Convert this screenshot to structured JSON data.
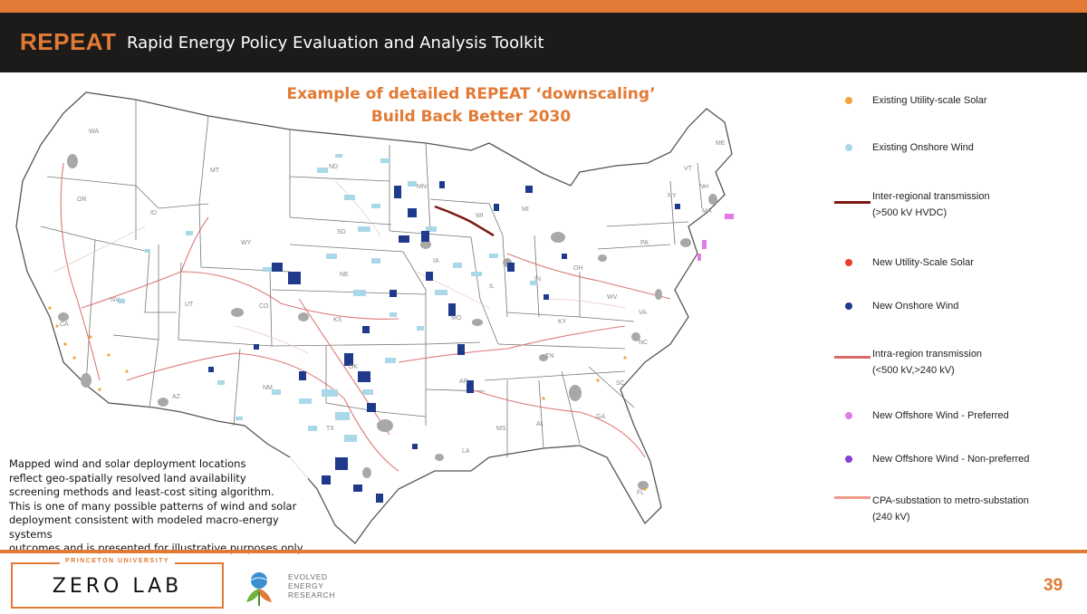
{
  "header": {
    "brand": "REPEAT",
    "title": "Rapid Energy Policy Evaluation and Analysis Toolkit"
  },
  "map": {
    "title_line1": "Example of detailed REPEAT ‘downscaling’",
    "title_line2": "Build Back Better 2030",
    "state_labels": [
      "WA",
      "OR",
      "CA",
      "NV",
      "ID",
      "MT",
      "WY",
      "UT",
      "AZ",
      "NM",
      "CO",
      "ND",
      "SD",
      "NE",
      "KS",
      "OK",
      "TX",
      "MN",
      "IA",
      "MO",
      "AR",
      "LA",
      "WI",
      "IL",
      "MI",
      "IN",
      "OH",
      "KY",
      "TN",
      "MS",
      "AL",
      "GA",
      "FL",
      "SC",
      "NC",
      "VA",
      "WV",
      "PA",
      "NY",
      "ME",
      "NH",
      "VT",
      "MA"
    ],
    "caption_lines": [
      "Mapped wind and solar deployment locations",
      "reflect geo-spatially resolved land availability",
      "screening methods and least-cost siting algorithm.",
      "This is one of many possible patterns of wind and solar",
      "deployment consistent with modeled macro-energy systems",
      "outcomes and is presented for illustrative purposes only."
    ]
  },
  "legend": {
    "items": [
      {
        "label_lines": [
          "Existing Utility-scale Solar"
        ],
        "kind": "dot",
        "color": "#f2a33a"
      },
      {
        "label_lines": [
          "Existing Onshore Wind"
        ],
        "kind": "dot",
        "color": "#a9d8e8"
      },
      {
        "label_lines": [
          "Inter-regional transmission",
          "(>500 kV HVDC)"
        ],
        "kind": "line",
        "color": "#7b1a12"
      },
      {
        "label_lines": [
          "New Utility-Scale Solar"
        ],
        "kind": "dot",
        "color": "#e8402c"
      },
      {
        "label_lines": [
          "New Onshore Wind"
        ],
        "kind": "dot",
        "color": "#1f3a8a"
      },
      {
        "label_lines": [
          "Intra-region transmission",
          "(<500 kV,>240 kV)"
        ],
        "kind": "line",
        "color": "#d96a6a"
      },
      {
        "label_lines": [
          "New Offshore Wind - Preferred"
        ],
        "kind": "dot",
        "color": "#e27ae8"
      },
      {
        "label_lines": [
          "New Offshore Wind - Non-preferred"
        ],
        "kind": "dot",
        "color": "#8a3fd6"
      },
      {
        "label_lines": [
          "CPA-substation to metro-substation",
          "(240 kV)"
        ],
        "kind": "line",
        "color": "#ef9a8a"
      }
    ]
  },
  "footer": {
    "university": "PRINCETON UNIVERSITY",
    "lab": "ZERO LAB",
    "partner_line1": "EVOLVED",
    "partner_line2": "ENERGY",
    "partner_line3": "RESEARCH",
    "page_number": "39"
  },
  "colors": {
    "accent": "#e27a35",
    "header_bg": "#1d1b19"
  }
}
